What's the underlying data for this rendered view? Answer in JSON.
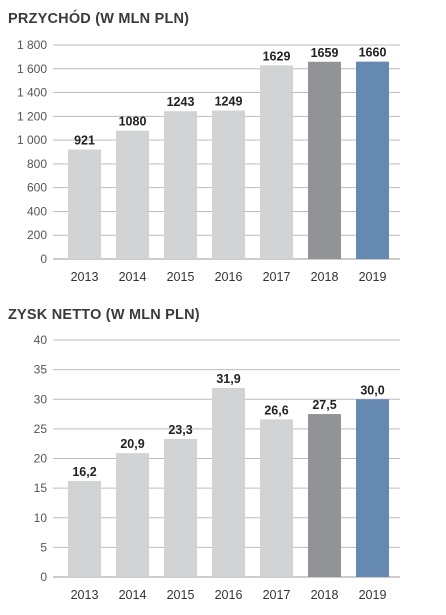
{
  "colors": {
    "bar_default": "#d2d3d5",
    "bar_2018": "#919396",
    "bar_2019": "#6689b2",
    "grid": "#bcbcbc",
    "axis": "#999999"
  },
  "chart_data": [
    {
      "type": "bar",
      "title": "PRZYCHÓD (W MLN PLN)",
      "categories": [
        "2013",
        "2014",
        "2015",
        "2016",
        "2017",
        "2018",
        "2019"
      ],
      "values": [
        921,
        1080,
        1243,
        1249,
        1629,
        1659,
        1660
      ],
      "value_labels": [
        "921",
        "1080",
        "1243",
        "1249",
        "1629",
        "1659",
        "1660"
      ],
      "bar_colors": [
        "#d2d3d5",
        "#d2d3d5",
        "#d2d3d5",
        "#d2d3d5",
        "#d2d3d5",
        "#919396",
        "#6689b2"
      ],
      "ylim": [
        0,
        1800
      ],
      "yticks": [
        0,
        200,
        400,
        600,
        800,
        1000,
        1200,
        1400,
        1600,
        1800
      ],
      "ytick_labels": [
        "0",
        "200",
        "400",
        "600",
        "800",
        "1 000",
        "1 200",
        "1 400",
        "1 600",
        "1 800"
      ],
      "xlabel": "",
      "ylabel": "",
      "grid": true
    },
    {
      "type": "bar",
      "title": "ZYSK NETTO (W MLN PLN)",
      "categories": [
        "2013",
        "2014",
        "2015",
        "2016",
        "2017",
        "2018",
        "2019"
      ],
      "values": [
        16.2,
        20.9,
        23.3,
        31.9,
        26.6,
        27.5,
        30.0
      ],
      "value_labels": [
        "16,2",
        "20,9",
        "23,3",
        "31,9",
        "26,6",
        "27,5",
        "30,0"
      ],
      "bar_colors": [
        "#d2d3d5",
        "#d2d3d5",
        "#d2d3d5",
        "#d2d3d5",
        "#d2d3d5",
        "#919396",
        "#6689b2"
      ],
      "ylim": [
        0,
        40
      ],
      "yticks": [
        0,
        5,
        10,
        15,
        20,
        25,
        30,
        35,
        40
      ],
      "ytick_labels": [
        "0",
        "5",
        "10",
        "15",
        "20",
        "25",
        "30",
        "35",
        "40"
      ],
      "xlabel": "",
      "ylabel": "",
      "grid": true
    }
  ]
}
